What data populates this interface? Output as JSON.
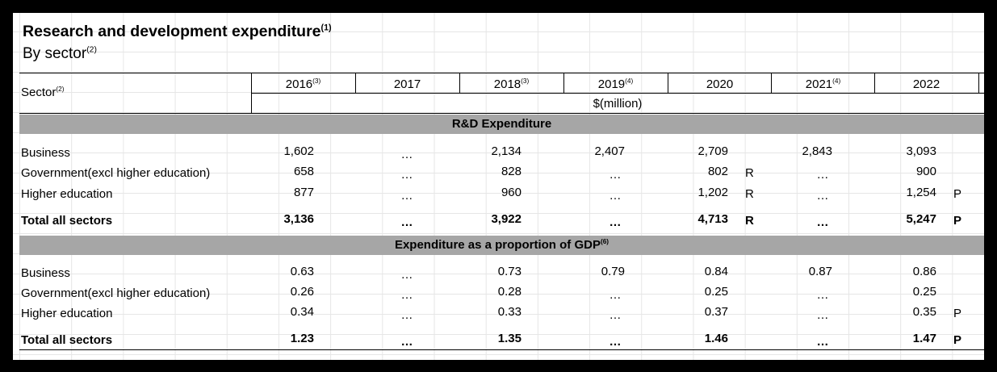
{
  "title": "Research and development expenditure",
  "title_note": "(1)",
  "subtitle": "By sector",
  "subtitle_note": "(2)",
  "header": {
    "sector_label": "Sector",
    "sector_note": "(2)",
    "unit": "$(million)",
    "years": [
      {
        "label": "2016",
        "note": "(3)"
      },
      {
        "label": "2017",
        "note": ""
      },
      {
        "label": "2018",
        "note": "(3)"
      },
      {
        "label": "2019",
        "note": "(4)"
      },
      {
        "label": "2020",
        "note": ""
      },
      {
        "label": "2021",
        "note": "(4)"
      },
      {
        "label": "2022",
        "note": ""
      }
    ]
  },
  "sections": [
    {
      "heading": "R&D Expenditure",
      "heading_note": "",
      "rows": [
        {
          "label": "Business",
          "total": false,
          "values": [
            "1,602",
            "...",
            "2,134",
            "2,407",
            "2,709",
            "2,843",
            "3,093"
          ],
          "flags": [
            "",
            "",
            "",
            "",
            "",
            "",
            ""
          ]
        },
        {
          "label": "Government(excl higher education)",
          "total": false,
          "values": [
            "658",
            "...",
            "828",
            "...",
            "802",
            "...",
            "900"
          ],
          "flags": [
            "",
            "",
            "",
            "",
            "R",
            "",
            ""
          ]
        },
        {
          "label": "Higher education",
          "total": false,
          "values": [
            "877",
            "...",
            "960",
            "...",
            "1,202",
            "...",
            "1,254"
          ],
          "flags": [
            "",
            "",
            "",
            "",
            "R",
            "",
            "P"
          ]
        },
        {
          "label": "Total all sectors",
          "total": true,
          "values": [
            "3,136",
            "...",
            "3,922",
            "...",
            "4,713",
            "...",
            "5,247"
          ],
          "flags": [
            "",
            "",
            "",
            "",
            "R",
            "",
            "P"
          ]
        }
      ]
    },
    {
      "heading": "Expenditure as a proportion of GDP",
      "heading_note": "(6)",
      "rows": [
        {
          "label": "Business",
          "total": false,
          "values": [
            "0.63",
            "...",
            "0.73",
            "0.79",
            "0.84",
            "0.87",
            "0.86"
          ],
          "flags": [
            "",
            "",
            "",
            "",
            "",
            "",
            ""
          ]
        },
        {
          "label": "Government(excl higher education)",
          "total": false,
          "values": [
            "0.26",
            "...",
            "0.28",
            "...",
            "0.25",
            "...",
            "0.25"
          ],
          "flags": [
            "",
            "",
            "",
            "",
            "",
            "",
            ""
          ]
        },
        {
          "label": "Higher education",
          "total": false,
          "values": [
            "0.34",
            "...",
            "0.33",
            "...",
            "0.37",
            "...",
            "0.35"
          ],
          "flags": [
            "",
            "",
            "",
            "",
            "",
            "",
            "P"
          ]
        },
        {
          "label": "Total all sectors",
          "total": true,
          "values": [
            "1.23",
            "...",
            "1.35",
            "...",
            "1.46",
            "...",
            "1.47"
          ],
          "flags": [
            "",
            "",
            "",
            "",
            "",
            "",
            "P"
          ]
        }
      ]
    }
  ]
}
